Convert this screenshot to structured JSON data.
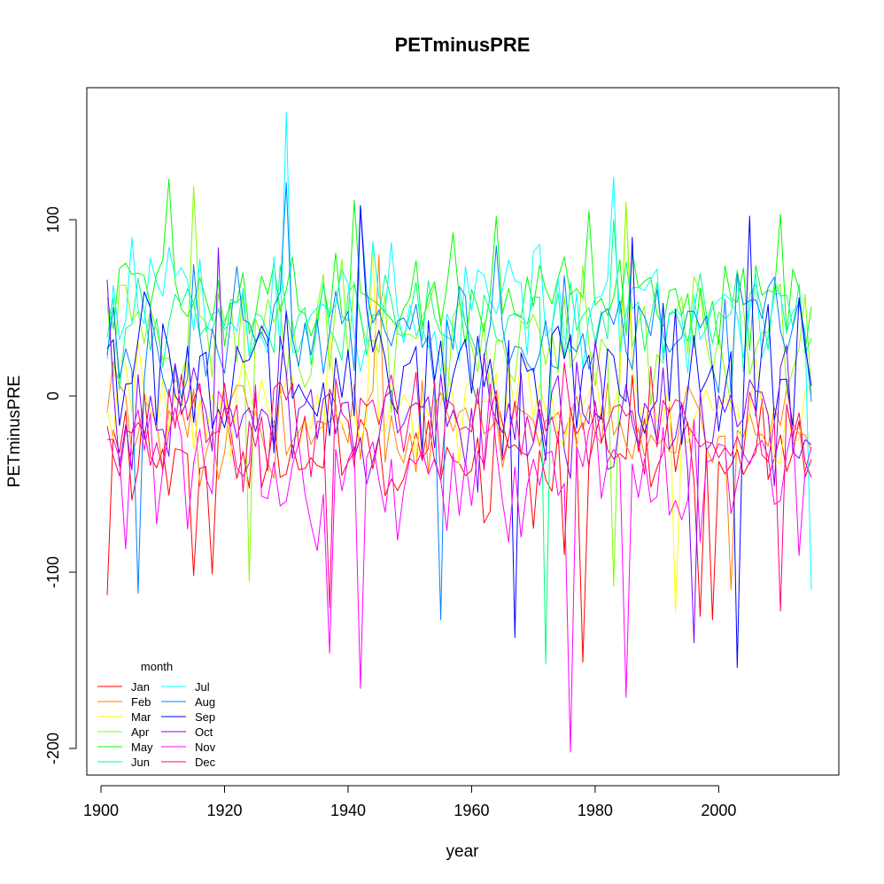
{
  "chart_data": {
    "type": "line",
    "title": "PETminusPRE",
    "xlabel": "year",
    "ylabel": "PETminusPRE",
    "xlim": [
      1901,
      2015
    ],
    "ylim": [
      -215,
      175
    ],
    "x_ticks": [
      1900,
      1920,
      1940,
      1960,
      1980,
      2000
    ],
    "x_tick_labels": [
      "1900",
      "1920",
      "1940",
      "1960",
      "1980",
      "2000"
    ],
    "y_ticks": [
      -200,
      -100,
      0,
      100
    ],
    "y_tick_labels": [
      "-200",
      "-100",
      "0",
      "100"
    ],
    "grid": false,
    "legend": {
      "title": "month",
      "position": "bottom-left",
      "columns": 2
    },
    "x": {
      "start": 1901,
      "end": 2015,
      "step": 1
    },
    "series": [
      {
        "name": "Jan",
        "color": "#FF0000",
        "mean": -32,
        "amplitude": 38,
        "min": -150,
        "max": 40,
        "anchors": [
          [
            1901,
            -113
          ],
          [
            1915,
            -102
          ],
          [
            1918,
            -101
          ],
          [
            1970,
            -75
          ],
          [
            1975,
            -90
          ],
          [
            1978,
            -151
          ],
          [
            1997,
            -125
          ],
          [
            1999,
            -127
          ]
        ]
      },
      {
        "name": "Feb",
        "color": "#FF8000",
        "mean": -20,
        "amplitude": 32,
        "min": -115,
        "max": 55,
        "anchors": [
          [
            1945,
            80
          ],
          [
            2002,
            -110
          ]
        ]
      },
      {
        "name": "Mar",
        "color": "#FFFF00",
        "mean": -5,
        "amplitude": 35,
        "min": -125,
        "max": 95,
        "anchors": [
          [
            1985,
            110
          ],
          [
            1993,
            -123
          ],
          [
            1944,
            85
          ]
        ]
      },
      {
        "name": "Apr",
        "color": "#80FF00",
        "mean": 35,
        "amplitude": 42,
        "min": -110,
        "max": 120,
        "anchors": [
          [
            1915,
            119
          ],
          [
            1924,
            -105
          ],
          [
            1983,
            -108
          ],
          [
            1985,
            110
          ]
        ]
      },
      {
        "name": "May",
        "color": "#00FF00",
        "mean": 55,
        "amplitude": 30,
        "min": -85,
        "max": 125,
        "anchors": [
          [
            1911,
            123
          ],
          [
            1941,
            111
          ],
          [
            1964,
            102
          ],
          [
            1979,
            105
          ],
          [
            2010,
            103
          ]
        ]
      },
      {
        "name": "Jun",
        "color": "#00FF80",
        "mean": 45,
        "amplitude": 32,
        "min": -95,
        "max": 108,
        "anchors": [
          [
            1972,
            -152
          ],
          [
            1983,
            100
          ]
        ]
      },
      {
        "name": "Jul",
        "color": "#00FFFF",
        "mean": 50,
        "amplitude": 38,
        "min": -110,
        "max": 160,
        "anchors": [
          [
            1930,
            161
          ],
          [
            1983,
            124
          ],
          [
            2015,
            -110
          ]
        ]
      },
      {
        "name": "Aug",
        "color": "#0080FF",
        "mean": 35,
        "amplitude": 45,
        "min": -130,
        "max": 120,
        "anchors": [
          [
            1930,
            121
          ],
          [
            1906,
            -112
          ],
          [
            1955,
            -127
          ],
          [
            1942,
            108
          ]
        ]
      },
      {
        "name": "Sep",
        "color": "#0000FF",
        "mean": 15,
        "amplitude": 50,
        "min": -155,
        "max": 105,
        "anchors": [
          [
            1942,
            108
          ],
          [
            2003,
            -154
          ],
          [
            2005,
            102
          ],
          [
            1967,
            -137
          ],
          [
            1986,
            90
          ]
        ]
      },
      {
        "name": "Oct",
        "color": "#8000FF",
        "mean": -10,
        "amplitude": 42,
        "min": -140,
        "max": 90,
        "anchors": [
          [
            1901,
            66
          ],
          [
            1919,
            84
          ],
          [
            1996,
            -140
          ]
        ]
      },
      {
        "name": "Nov",
        "color": "#FF00FF",
        "mean": -40,
        "amplitude": 45,
        "min": -202,
        "max": 60,
        "anchors": [
          [
            1942,
            -166
          ],
          [
            1976,
            -202
          ],
          [
            1985,
            -171
          ],
          [
            1937,
            -146
          ]
        ]
      },
      {
        "name": "Dec",
        "color": "#FF0080",
        "mean": -15,
        "amplitude": 35,
        "min": -130,
        "max": 70,
        "anchors": [
          [
            2010,
            -122
          ],
          [
            1937,
            -120
          ]
        ]
      }
    ]
  }
}
